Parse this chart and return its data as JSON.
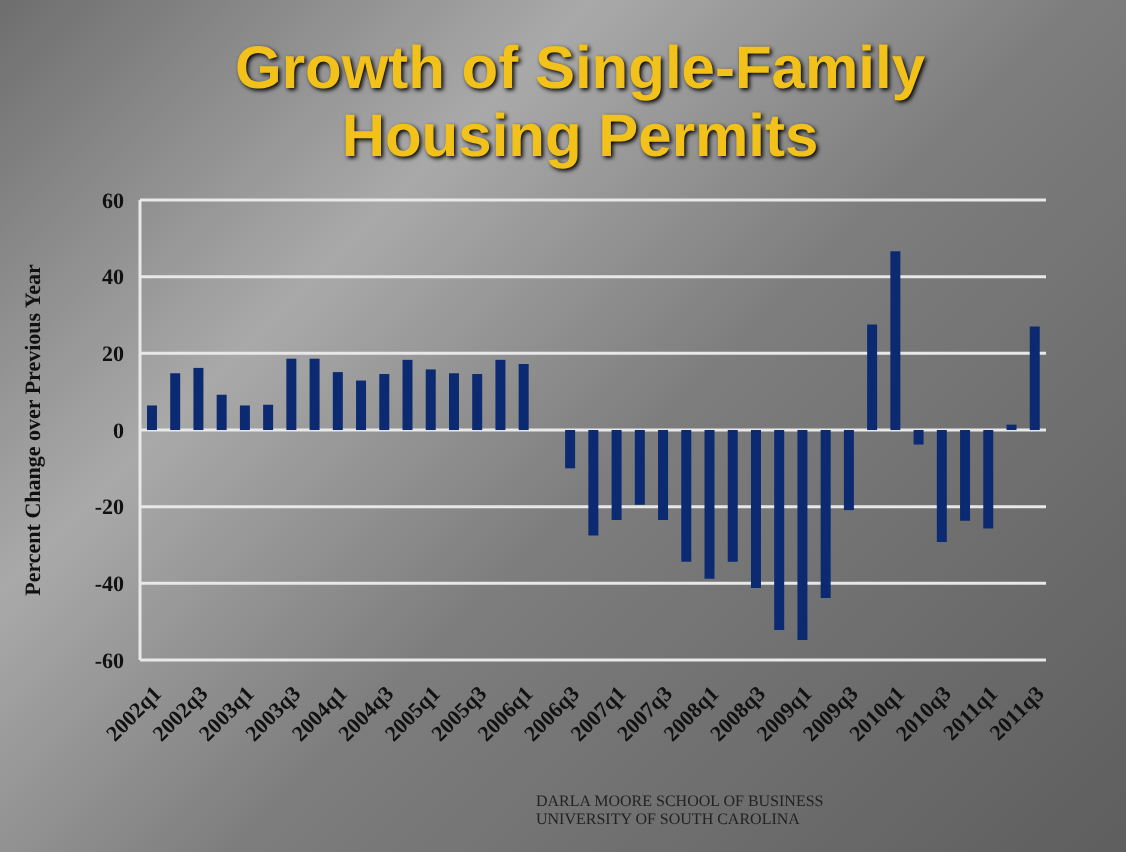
{
  "chart_data": {
    "type": "bar",
    "title": "Growth of Single-Family Housing Permits",
    "ylabel": "Percent Change over Previous Year",
    "categories": [
      "2002q1",
      null,
      "2002q3",
      null,
      "2003q1",
      null,
      "2003q3",
      null,
      "2004q1",
      null,
      "2004q3",
      null,
      "2005q1",
      null,
      "2005q3",
      null,
      "2006q1",
      null,
      "2006q3",
      null,
      "2007q1",
      null,
      "2007q3",
      null,
      "2008q1",
      null,
      "2008q3",
      null,
      "2009q1",
      null,
      "2009q3",
      null,
      "2010q1",
      null,
      "2010q3",
      null,
      "2011q1",
      null,
      "2011q3"
    ],
    "values": [
      6.4,
      14.8,
      16.2,
      9.2,
      6.4,
      6.6,
      18.6,
      18.6,
      15.1,
      12.9,
      14.6,
      18.3,
      15.8,
      14.8,
      14.6,
      18.3,
      17.2,
      null,
      -10,
      -27.5,
      -23.5,
      -19.5,
      -23.5,
      -34.4,
      -38.8,
      -34.4,
      -41.2,
      -52.2,
      -54.8,
      -43.8,
      -20.9,
      27.5,
      46.6,
      -3.8,
      -29.2,
      -23.7,
      -25.7,
      1.4,
      27
    ],
    "color": "#0c2a72",
    "ylim": [
      -60,
      60
    ],
    "yticks": [
      -60,
      -40,
      -20,
      0,
      20,
      40,
      60
    ],
    "grid": "y",
    "legend": false,
    "annotations": [
      "DARLA MOORE SCHOOL OF BUSINESS UNIVERSITY OF SOUTH CAROLINA"
    ]
  }
}
